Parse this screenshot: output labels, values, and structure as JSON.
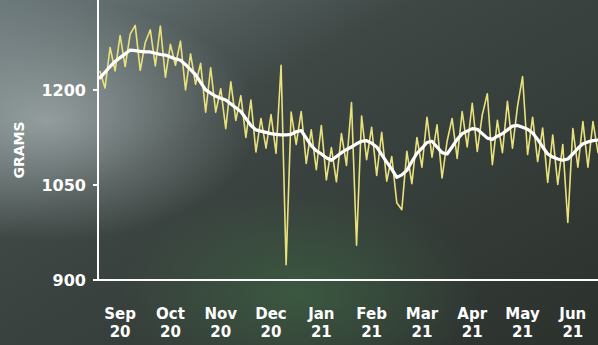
{
  "chart_data": {
    "type": "line",
    "y_label": "GRAMS",
    "categories": [
      null,
      null,
      null,
      null,
      "Sep 20",
      null,
      null,
      null,
      null,
      null,
      null,
      null,
      null,
      null,
      "Oct 20",
      null,
      null,
      null,
      null,
      null,
      null,
      null,
      null,
      null,
      "Nov 20",
      null,
      null,
      null,
      null,
      null,
      null,
      null,
      null,
      null,
      "Dec 20",
      null,
      null,
      null,
      null,
      null,
      null,
      null,
      null,
      null,
      "Jan 21",
      null,
      null,
      null,
      null,
      null,
      null,
      null,
      null,
      null,
      "Feb 21",
      null,
      null,
      null,
      null,
      null,
      null,
      null,
      null,
      null,
      "Mar 21",
      null,
      null,
      null,
      null,
      null,
      null,
      null,
      null,
      null,
      "Apr 21",
      null,
      null,
      null,
      null,
      null,
      null,
      null,
      null,
      null,
      "May 21",
      null,
      null,
      null,
      null,
      null,
      null,
      null,
      null,
      null,
      "Jun 21",
      null,
      null,
      null,
      null,
      null
    ],
    "series": [
      {
        "color": "#e9e27c",
        "line_style": "solid",
        "values": [
          1229,
          1203,
          1267,
          1230,
          1286,
          1237,
          1288,
          1302,
          1231,
          1275,
          1295,
          1238,
          1301,
          1220,
          1272,
          1239,
          1277,
          1200,
          1257,
          1209,
          1242,
          1165,
          1235,
          1165,
          1202,
          1139,
          1213,
          1152,
          1191,
          1125,
          1184,
          1102,
          1155,
          1108,
          1161,
          1100,
          1239,
          924,
          1165,
          1114,
          1166,
          1084,
          1137,
          1074,
          1144,
          1058,
          1109,
          1055,
          1131,
          1081,
          1180,
          955,
          1159,
          1090,
          1141,
          1065,
          1133,
          1056,
          1095,
          1022,
          1011,
          1103,
          1052,
          1125,
          1078,
          1157,
          1094,
          1145,
          1061,
          1119,
          1155,
          1092,
          1166,
          1110,
          1179,
          1103,
          1161,
          1194,
          1082,
          1152,
          1101,
          1182,
          1108,
          1174,
          1221,
          1098,
          1157,
          1087,
          1140,
          1054,
          1129,
          1051,
          1114,
          991,
          1139,
          1078,
          1150,
          1078,
          1150,
          1101
        ]
      },
      {
        "color": "#ffffff",
        "line_style": "solid",
        "values": [
          1219,
          1228,
          1237,
          1245,
          1251,
          1257,
          1263,
          1262,
          1261,
          1260,
          1260,
          1258,
          1256,
          1255,
          1252,
          1249,
          1247,
          1240,
          1232,
          1224,
          1212,
          1200,
          1195,
          1190,
          1187,
          1184,
          1178,
          1172,
          1166,
          1155,
          1144,
          1137,
          1135,
          1133,
          1131,
          1130,
          1129,
          1129,
          1130,
          1134,
          1136,
          1124,
          1112,
          1104,
          1099,
          1093,
          1089,
          1095,
          1101,
          1106,
          1110,
          1115,
          1119,
          1120,
          1116,
          1110,
          1098,
          1086,
          1075,
          1062,
          1066,
          1073,
          1087,
          1100,
          1108,
          1117,
          1119,
          1110,
          1101,
          1099,
          1110,
          1122,
          1131,
          1135,
          1139,
          1138,
          1131,
          1124,
          1122,
          1127,
          1131,
          1137,
          1143,
          1144,
          1141,
          1138,
          1132,
          1122,
          1110,
          1099,
          1094,
          1091,
          1089,
          1091,
          1099,
          1108,
          1115,
          1118,
          1120,
          1121
        ]
      }
    ],
    "ylim": [
      900,
      1342
    ],
    "yticks": [
      900,
      1050,
      1200
    ],
    "grid": false
  }
}
